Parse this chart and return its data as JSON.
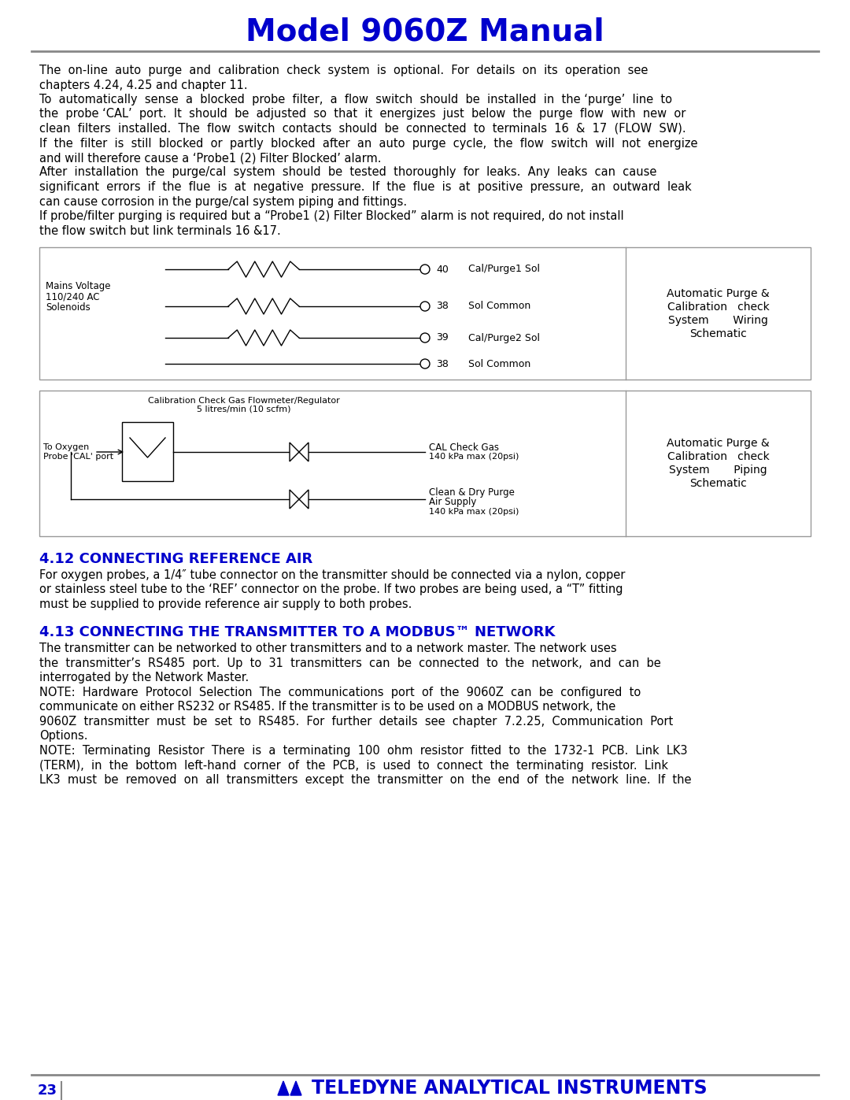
{
  "title": "Model 9060Z Manual",
  "title_color": "#0000CC",
  "title_fontsize": 28,
  "page_number": "23",
  "footer_text": "TELEDYNE ANALYTICAL INSTRUMENTS",
  "body_color": "#000000",
  "body_fontsize": 10.5,
  "section_color": "#0000CC",
  "section_fontsize": 13,
  "background_color": "#FFFFFF",
  "lines_para1": [
    "The  on-line  auto  purge  and  calibration  check  system  is  optional.  For  details  on  its  operation  see",
    "chapters 4.24, 4.25 and chapter 11.",
    "To  automatically  sense  a  blocked  probe  filter,  a  flow  switch  should  be  installed  in  the ‘purge’  line  to",
    "the  probe ‘CAL’  port.  It  should  be  adjusted  so  that  it  energizes  just  below  the  purge  flow  with  new  or",
    "clean  filters  installed.  The  flow  switch  contacts  should  be  connected  to  terminals  16  &  17  (FLOW  SW).",
    "If  the  filter  is  still  blocked  or  partly  blocked  after  an  auto  purge  cycle,  the  flow  switch  will  not  energize",
    "and will therefore cause a ‘Probe1 (2) Filter Blocked’ alarm.",
    "After  installation  the  purge/cal  system  should  be  tested  thoroughly  for  leaks.  Any  leaks  can  cause",
    "significant  errors  if  the  flue  is  at  negative  pressure.  If  the  flue  is  at  positive  pressure,  an  outward  leak",
    "can cause corrosion in the purge/cal system piping and fittings.",
    "If probe/filter purging is required but a “Probe1 (2) Filter Blocked” alarm is not required, do not install",
    "the flow switch but link terminals 16 &17."
  ],
  "diag1_label": [
    "Automatic Purge &",
    "Calibration   check",
    "System       Wiring",
    "Schematic"
  ],
  "diag2_label": [
    "Automatic Purge &",
    "Calibration   check",
    "System       Piping",
    "Schematic"
  ],
  "section412_title": "4.12 CONNECTING REFERENCE AIR",
  "section412_lines": [
    "For oxygen probes, a 1/4″ tube connector on the transmitter should be connected via a nylon, copper",
    "or stainless steel tube to the ‘REF’ connector on the probe. If two probes are being used, a “T” fitting",
    "must be supplied to provide reference air supply to both probes."
  ],
  "section413_title": "4.13 CONNECTING THE TRANSMITTER TO A MODBUS™ NETWORK",
  "section413_lines": [
    "The transmitter can be networked to other transmitters and to a network master. The network uses",
    "the  transmitter’s  RS485  port.  Up  to  31  transmitters  can  be  connected  to  the  network,  and  can  be",
    "interrogated by the Network Master.",
    "NOTE:  Hardware  Protocol  Selection  The  communications  port  of  the  9060Z  can  be  configured  to",
    "communicate on either RS232 or RS485. If the transmitter is to be used on a MODBUS network, the",
    "9060Z  transmitter  must  be  set  to  RS485.  For  further  details  see  chapter  7.2.25,  Communication  Port",
    "Options.",
    "NOTE:  Terminating  Resistor  There  is  a  terminating  100  ohm  resistor  fitted  to  the  1732-1  PCB.  Link  LK3",
    "(TERM),  in  the  bottom  left-hand  corner  of  the  PCB,  is  used  to  connect  the  terminating  resistor.  Link",
    "LK3  must  be  removed  on  all  transmitters  except  the  transmitter  on  the  end  of  the  network  line.  If  the"
  ]
}
